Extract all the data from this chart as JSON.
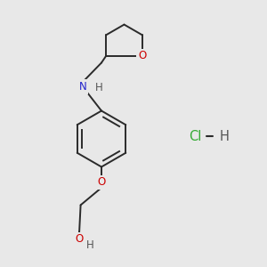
{
  "bg_color": "#e8e8e8",
  "bond_color": "#2a2a2a",
  "bond_width": 1.4,
  "atom_colors": {
    "O": "#cc0000",
    "N": "#2222cc",
    "H": "#555555",
    "Cl": "#33aa33",
    "C": "#2a2a2a"
  },
  "font_size": 8.5,
  "hcl_font_size": 10.5,
  "fig_w": 3.0,
  "fig_h": 3.0,
  "dpi": 100
}
